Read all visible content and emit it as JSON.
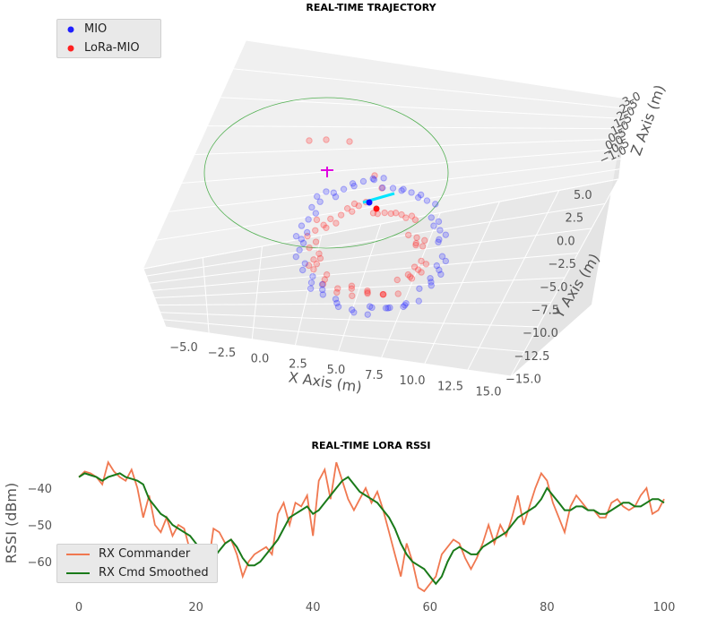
{
  "chart_data": [
    {
      "type": "scatter",
      "subtype": "3d-trajectory",
      "title": "REAL-TIME TRAJECTORY",
      "xlabel": "X Axis (m)",
      "ylabel": "Y Axis (m)",
      "zlabel": "Z Axis (m)",
      "xticks": [
        "−5.0",
        "−2.5",
        "0.0",
        "2.5",
        "5.0",
        "7.5",
        "10.0",
        "12.5",
        "15.0"
      ],
      "yticks": [
        "5.0",
        "2.5",
        "0.0",
        "−2.5",
        "−5.0",
        "−7.5",
        "−10.0",
        "−12.5",
        "−15.0"
      ],
      "zticks": [
        "3.0",
        "2.5",
        "2.0",
        "1.5",
        "1.0",
        "0.5",
        "0.0",
        "−0.5",
        "−1.0"
      ],
      "legend_position": "top-left",
      "series": [
        {
          "name": "MIO",
          "color": "#1f1fff"
        },
        {
          "name": "LoRa-MIO",
          "color": "#ff2020"
        }
      ]
    },
    {
      "type": "line",
      "title": "REAL-TIME LORA RSSI",
      "xlabel": "",
      "ylabel": "RSSI (dBm)",
      "xlim": [
        0,
        100
      ],
      "ylim": [
        -68,
        -32
      ],
      "xticks": [
        0,
        20,
        40,
        60,
        80,
        100
      ],
      "yticks": [
        -40,
        -50,
        -60
      ],
      "legend_position": "bottom-left",
      "x": [
        0,
        1,
        2,
        3,
        4,
        5,
        6,
        7,
        8,
        9,
        10,
        11,
        12,
        13,
        14,
        15,
        16,
        17,
        18,
        19,
        20,
        21,
        22,
        23,
        24,
        25,
        26,
        27,
        28,
        29,
        30,
        31,
        32,
        33,
        34,
        35,
        36,
        37,
        38,
        39,
        40,
        41,
        42,
        43,
        44,
        45,
        46,
        47,
        48,
        49,
        50,
        51,
        52,
        53,
        54,
        55,
        56,
        57,
        58,
        59,
        60,
        61,
        62,
        63,
        64,
        65,
        66,
        67,
        68,
        69,
        70,
        71,
        72,
        73,
        74,
        75,
        76,
        77,
        78,
        79,
        80,
        81,
        82,
        83,
        84,
        85,
        86,
        87,
        88,
        89,
        90,
        91,
        92,
        93,
        94,
        95,
        96,
        97,
        98,
        99,
        100
      ],
      "series": [
        {
          "name": "RX Commander",
          "color": "#f07850",
          "values": [
            -37,
            -35.5,
            -36,
            -37,
            -39,
            -33,
            -35.5,
            -37,
            -38,
            -35,
            -40,
            -48,
            -42,
            -50,
            -52,
            -48,
            -53,
            -50,
            -51,
            -57,
            -60,
            -59,
            -62,
            -51,
            -52,
            -55,
            -54,
            -58,
            -64,
            -60,
            -58,
            -57,
            -56,
            -58,
            -47,
            -44,
            -50,
            -44,
            -45,
            -42,
            -53,
            -38,
            -35,
            -43,
            -33,
            -38,
            -43,
            -46,
            -43,
            -40,
            -44,
            -41,
            -46,
            -52,
            -58,
            -64,
            -55,
            -60,
            -67,
            -68,
            -66,
            -64,
            -58,
            -56,
            -54,
            -55,
            -59,
            -62,
            -59,
            -55,
            -50,
            -55,
            -50,
            -53,
            -48,
            -42,
            -50,
            -45,
            -40,
            -36,
            -38,
            -44,
            -48,
            -52,
            -45,
            -42,
            -44,
            -46,
            -46,
            -48,
            -48,
            -44,
            -43,
            -45,
            -46,
            -45,
            -42,
            -40,
            -47,
            -46,
            -43
          ]
        },
        {
          "name": "RX Cmd Smoothed",
          "color": "#1a7a1a",
          "values": [
            -37,
            -36,
            -36.5,
            -37,
            -38,
            -37,
            -36.5,
            -36,
            -37,
            -37.5,
            -38,
            -39,
            -43,
            -45,
            -47,
            -48,
            -50,
            -51,
            -52,
            -53,
            -55,
            -57,
            -60,
            -59,
            -57,
            -55,
            -54,
            -56,
            -59,
            -61,
            -61,
            -60,
            -58,
            -56,
            -54,
            -51,
            -48,
            -47,
            -46,
            -45,
            -47,
            -46,
            -44,
            -42,
            -40,
            -38,
            -37,
            -39,
            -41,
            -42,
            -43,
            -44,
            -46,
            -48,
            -51,
            -55,
            -58,
            -60,
            -61,
            -62,
            -64,
            -66,
            -64,
            -60,
            -57,
            -56,
            -57,
            -58,
            -58,
            -56,
            -55,
            -54,
            -53,
            -52,
            -50,
            -48,
            -47,
            -46,
            -45,
            -43,
            -40,
            -42,
            -44,
            -46,
            -46,
            -45,
            -45,
            -46,
            -46,
            -47,
            -47,
            -46,
            -45,
            -44,
            -44,
            -45,
            -45,
            -44,
            -43,
            -43,
            -44
          ]
        }
      ]
    }
  ]
}
